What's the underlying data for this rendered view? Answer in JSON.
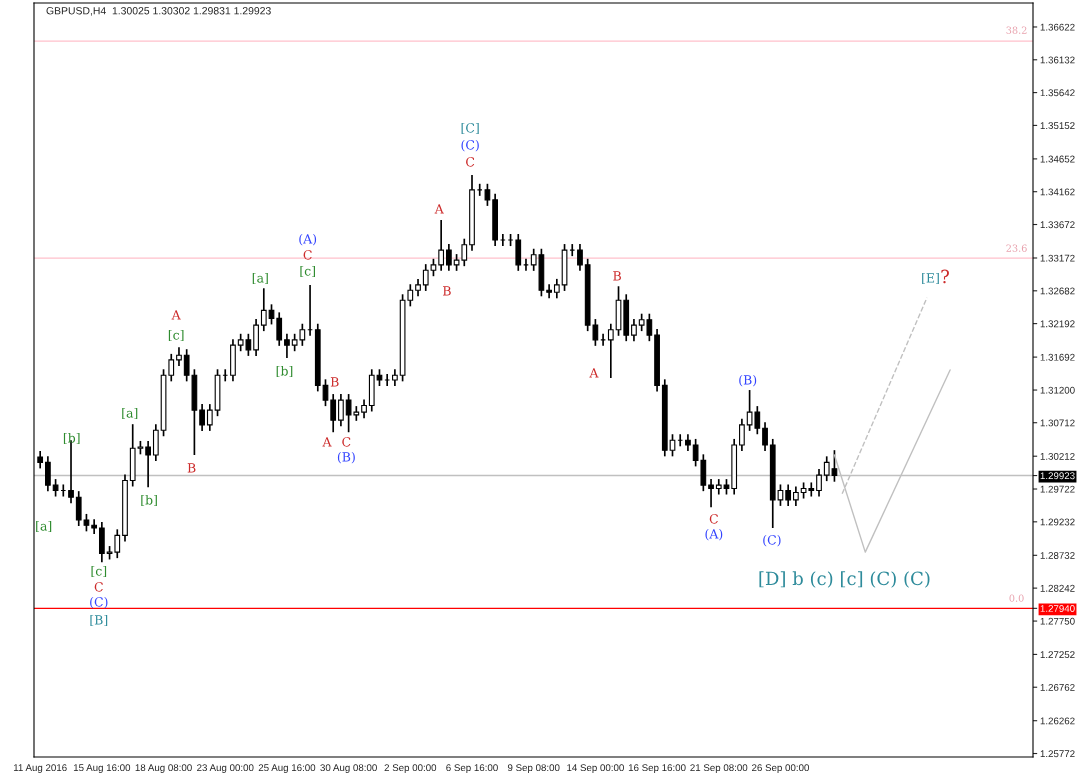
{
  "chart_data": {
    "type": "candlestick",
    "title": "GBPUSD,H4  1.30025 1.30302 1.29831 1.29923",
    "categories": [
      "11 Aug 2016",
      null,
      null,
      null,
      null,
      null,
      null,
      null,
      "15 Aug 16:00",
      null,
      null,
      null,
      null,
      null,
      null,
      null,
      "18 Aug 08:00",
      null,
      null,
      null,
      null,
      null,
      null,
      null,
      "23 Aug 00:00",
      null,
      null,
      null,
      null,
      null,
      null,
      null,
      "25 Aug 16:00",
      null,
      null,
      null,
      null,
      null,
      null,
      null,
      "30 Aug 08:00",
      null,
      null,
      null,
      null,
      null,
      null,
      null,
      "2 Sep 00:00",
      null,
      null,
      null,
      null,
      null,
      null,
      null,
      "6 Sep 16:00",
      null,
      null,
      null,
      null,
      null,
      null,
      null,
      "9 Sep 08:00",
      null,
      null,
      null,
      null,
      null,
      null,
      null,
      "14 Sep 00:00",
      null,
      null,
      null,
      null,
      null,
      null,
      null,
      "16 Sep 16:00",
      null,
      null,
      null,
      null,
      null,
      null,
      null,
      "21 Sep 08:00",
      null,
      null,
      null,
      null,
      null,
      null,
      null,
      "26 Sep 00:00",
      null,
      null,
      null,
      null,
      null,
      null,
      null,
      null,
      null,
      null,
      null,
      null,
      null,
      null,
      null,
      null,
      null,
      null,
      null,
      null,
      null,
      null,
      null,
      null,
      null,
      null,
      null,
      null,
      null,
      null,
      null,
      null
    ],
    "ohlc": [
      [
        1.302,
        1.3029,
        1.3003,
        1.3012
      ],
      [
        1.3012,
        1.3021,
        1.2969,
        1.2978
      ],
      [
        1.2978,
        1.2987,
        1.2961,
        1.297
      ],
      [
        1.297,
        1.2979,
        1.2961,
        1.297
      ],
      [
        1.297,
        1.3045,
        1.2951,
        1.296
      ],
      [
        1.296,
        1.2969,
        1.2917,
        1.2926
      ],
      [
        1.2926,
        1.2935,
        1.2909,
        1.2918
      ],
      [
        1.2918,
        1.2927,
        1.2905,
        1.2914
      ],
      [
        1.2914,
        1.2923,
        1.2863,
        1.2876
      ],
      [
        1.2876,
        1.2887,
        1.2867,
        1.2878
      ],
      [
        1.2878,
        1.2912,
        1.2869,
        1.2903
      ],
      [
        1.2903,
        1.2994,
        1.2894,
        1.2985
      ],
      [
        1.2985,
        1.3069,
        1.2976,
        1.3033
      ],
      [
        1.3033,
        1.3044,
        1.3024,
        1.3035
      ],
      [
        1.3035,
        1.3044,
        1.2975,
        1.3023
      ],
      [
        1.3023,
        1.3069,
        1.3014,
        1.306
      ],
      [
        1.306,
        1.3151,
        1.3051,
        1.3142
      ],
      [
        1.3142,
        1.3174,
        1.3133,
        1.3165
      ],
      [
        1.3165,
        1.3184,
        1.3156,
        1.3172
      ],
      [
        1.3172,
        1.3181,
        1.3133,
        1.3142
      ],
      [
        1.3142,
        1.3151,
        1.3023,
        1.309
      ],
      [
        1.309,
        1.3099,
        1.3059,
        1.3068
      ],
      [
        1.3068,
        1.3099,
        1.3059,
        1.309
      ],
      [
        1.309,
        1.3151,
        1.3081,
        1.3142
      ],
      [
        1.3142,
        1.3151,
        1.3133,
        1.3142
      ],
      [
        1.3142,
        1.3196,
        1.3133,
        1.3187
      ],
      [
        1.3187,
        1.3204,
        1.3178,
        1.3195
      ],
      [
        1.3195,
        1.3204,
        1.3171,
        1.318
      ],
      [
        1.318,
        1.3226,
        1.3171,
        1.3217
      ],
      [
        1.3217,
        1.3272,
        1.3208,
        1.3239
      ],
      [
        1.3239,
        1.3248,
        1.3218,
        1.3227
      ],
      [
        1.3227,
        1.3236,
        1.3186,
        1.3195
      ],
      [
        1.3195,
        1.3204,
        1.3168,
        1.3187
      ],
      [
        1.3187,
        1.3204,
        1.3178,
        1.3195
      ],
      [
        1.3195,
        1.3219,
        1.3186,
        1.321
      ],
      [
        1.321,
        1.3277,
        1.3201,
        1.321
      ],
      [
        1.321,
        1.3219,
        1.3118,
        1.3127
      ],
      [
        1.3127,
        1.3136,
        1.3096,
        1.3105
      ],
      [
        1.3105,
        1.3114,
        1.3057,
        1.3075
      ],
      [
        1.3075,
        1.3114,
        1.3066,
        1.3105
      ],
      [
        1.3105,
        1.3114,
        1.3057,
        1.3083
      ],
      [
        1.3083,
        1.3096,
        1.3074,
        1.3087
      ],
      [
        1.3087,
        1.3106,
        1.3078,
        1.3097
      ],
      [
        1.3097,
        1.3151,
        1.3088,
        1.3142
      ],
      [
        1.3142,
        1.3151,
        1.3126,
        1.3135
      ],
      [
        1.3135,
        1.3144,
        1.3126,
        1.3135
      ],
      [
        1.3135,
        1.3151,
        1.3126,
        1.3142
      ],
      [
        1.3142,
        1.3263,
        1.3133,
        1.3254
      ],
      [
        1.3254,
        1.3278,
        1.3245,
        1.3269
      ],
      [
        1.3269,
        1.3286,
        1.326,
        1.3277
      ],
      [
        1.3277,
        1.3308,
        1.3268,
        1.3299
      ],
      [
        1.3299,
        1.3316,
        1.329,
        1.3307
      ],
      [
        1.3307,
        1.3374,
        1.3298,
        1.3329
      ],
      [
        1.3329,
        1.3338,
        1.3298,
        1.3307
      ],
      [
        1.3307,
        1.3323,
        1.3298,
        1.3314
      ],
      [
        1.3314,
        1.3346,
        1.3305,
        1.3337
      ],
      [
        1.3337,
        1.3441,
        1.3328,
        1.3419
      ],
      [
        1.3419,
        1.3428,
        1.341,
        1.3419
      ],
      [
        1.3419,
        1.3428,
        1.3395,
        1.3404
      ],
      [
        1.3404,
        1.3413,
        1.3335,
        1.3344
      ],
      [
        1.3344,
        1.3353,
        1.3335,
        1.3344
      ],
      [
        1.3344,
        1.3353,
        1.3335,
        1.3344
      ],
      [
        1.3344,
        1.3353,
        1.3298,
        1.3307
      ],
      [
        1.3307,
        1.3316,
        1.3298,
        1.3307
      ],
      [
        1.3307,
        1.3331,
        1.3298,
        1.3322
      ],
      [
        1.3322,
        1.3331,
        1.326,
        1.3269
      ],
      [
        1.3269,
        1.3278,
        1.3257,
        1.3266
      ],
      [
        1.3266,
        1.3286,
        1.3257,
        1.3277
      ],
      [
        1.3277,
        1.3338,
        1.3268,
        1.3329
      ],
      [
        1.3329,
        1.3338,
        1.332,
        1.3329
      ],
      [
        1.3329,
        1.3338,
        1.3298,
        1.3307
      ],
      [
        1.3307,
        1.3316,
        1.3208,
        1.3217
      ],
      [
        1.3217,
        1.3226,
        1.3186,
        1.3195
      ],
      [
        1.3195,
        1.3204,
        1.3186,
        1.3195
      ],
      [
        1.3195,
        1.3219,
        1.3138,
        1.321
      ],
      [
        1.321,
        1.3275,
        1.3201,
        1.3254
      ],
      [
        1.3254,
        1.3263,
        1.3193,
        1.3202
      ],
      [
        1.3202,
        1.3226,
        1.3193,
        1.3217
      ],
      [
        1.3217,
        1.3234,
        1.3208,
        1.3225
      ],
      [
        1.3225,
        1.3234,
        1.3193,
        1.3202
      ],
      [
        1.3202,
        1.3211,
        1.3118,
        1.3127
      ],
      [
        1.3127,
        1.3136,
        1.3021,
        1.303
      ],
      [
        1.303,
        1.3054,
        1.3021,
        1.3045
      ],
      [
        1.3045,
        1.3054,
        1.3036,
        1.3045
      ],
      [
        1.3045,
        1.3054,
        1.3029,
        1.3038
      ],
      [
        1.3038,
        1.3047,
        1.3006,
        1.3015
      ],
      [
        1.3015,
        1.3024,
        1.2969,
        1.2978
      ],
      [
        1.2978,
        1.2987,
        1.2945,
        1.2973
      ],
      [
        1.2973,
        1.2987,
        1.2964,
        1.2978
      ],
      [
        1.2978,
        1.2987,
        1.2964,
        1.2973
      ],
      [
        1.2973,
        1.3047,
        1.2964,
        1.3038
      ],
      [
        1.3038,
        1.3077,
        1.3029,
        1.3068
      ],
      [
        1.3068,
        1.312,
        1.3059,
        1.3087
      ],
      [
        1.3087,
        1.3096,
        1.3054,
        1.3063
      ],
      [
        1.3063,
        1.3072,
        1.3029,
        1.3038
      ],
      [
        1.3038,
        1.3047,
        1.2914,
        1.2956
      ],
      [
        1.2956,
        1.2979,
        1.2947,
        1.297
      ],
      [
        1.297,
        1.2979,
        1.2947,
        1.2956
      ],
      [
        1.2956,
        1.2976,
        1.2947,
        1.2967
      ],
      [
        1.2967,
        1.2982,
        1.2958,
        1.2973
      ],
      [
        1.2973,
        1.2982,
        1.2961,
        1.297
      ],
      [
        1.297,
        1.3002,
        1.2961,
        1.2993
      ],
      [
        1.2993,
        1.3021,
        1.2984,
        1.3012
      ],
      [
        1.30025,
        1.30302,
        1.29831,
        1.29923
      ],
      null,
      null,
      null,
      null,
      null,
      null,
      null,
      null,
      null,
      null,
      null,
      null,
      null,
      null,
      null,
      null,
      null,
      null,
      null,
      null,
      null,
      null,
      null,
      null,
      null
    ],
    "series": [
      {
        "type": "line",
        "color": "#c0c0c0",
        "line_style": "solid",
        "values": [
          null,
          null,
          null,
          null,
          null,
          null,
          null,
          null,
          null,
          null,
          null,
          null,
          null,
          null,
          null,
          null,
          null,
          null,
          null,
          null,
          null,
          null,
          null,
          null,
          null,
          null,
          null,
          null,
          null,
          null,
          null,
          null,
          null,
          null,
          null,
          null,
          null,
          null,
          null,
          null,
          null,
          null,
          null,
          null,
          null,
          null,
          null,
          null,
          null,
          null,
          null,
          null,
          null,
          null,
          null,
          null,
          null,
          null,
          null,
          null,
          null,
          null,
          null,
          null,
          null,
          null,
          null,
          null,
          null,
          null,
          null,
          null,
          null,
          null,
          null,
          null,
          null,
          null,
          null,
          null,
          null,
          null,
          null,
          null,
          null,
          null,
          null,
          null,
          null,
          null,
          null,
          null,
          null,
          null,
          null,
          null,
          null,
          null,
          null,
          null,
          null,
          null,
          null,
          1.3023,
          null,
          null,
          null,
          1.2878,
          null,
          null,
          null,
          null,
          null,
          null,
          null,
          null,
          null,
          null,
          1.315,
          null,
          null,
          null,
          null,
          null,
          null,
          null,
          null,
          null,
          null
        ]
      },
      {
        "type": "line",
        "color": "#c0c0c0",
        "line_style": "dashed",
        "values": [
          null,
          null,
          null,
          null,
          null,
          null,
          null,
          null,
          null,
          null,
          null,
          null,
          null,
          null,
          null,
          null,
          null,
          null,
          null,
          null,
          null,
          null,
          null,
          null,
          null,
          null,
          null,
          null,
          null,
          null,
          null,
          null,
          null,
          null,
          null,
          null,
          null,
          null,
          null,
          null,
          null,
          null,
          null,
          null,
          null,
          null,
          null,
          null,
          null,
          null,
          null,
          null,
          null,
          null,
          null,
          null,
          null,
          null,
          null,
          null,
          null,
          null,
          null,
          null,
          null,
          null,
          null,
          null,
          null,
          null,
          null,
          null,
          null,
          null,
          null,
          null,
          null,
          null,
          null,
          null,
          null,
          null,
          null,
          null,
          null,
          null,
          null,
          null,
          null,
          null,
          null,
          null,
          null,
          null,
          null,
          null,
          null,
          null,
          null,
          null,
          null,
          null,
          null,
          null,
          1.2965,
          null,
          null,
          null,
          null,
          null,
          null,
          null,
          null,
          null,
          null,
          1.3258,
          null,
          null,
          null,
          null,
          null,
          null,
          null,
          null,
          null,
          null,
          null,
          null,
          null
        ]
      }
    ],
    "ylim": [
      1.2572,
      1.3698
    ],
    "yticks": [
      1.25772,
      1.26262,
      1.26762,
      1.27252,
      {
        "value": 1.2775,
        "label": "1.27750"
      },
      {
        "value": 1.2794,
        "label": "1.27940"
      },
      1.28242,
      1.28732,
      1.29232,
      1.29722,
      1.29923,
      1.30212,
      1.30712,
      {
        "value": 1.312,
        "label": "1.31200"
      },
      1.31692,
      1.32192,
      1.32682,
      1.33172,
      1.33672,
      1.34162,
      1.34652,
      1.35152,
      1.35642,
      1.36132,
      1.36622
    ],
    "ref_lines": [
      {
        "axis": "y",
        "value": 1.3641,
        "color": "#ffc0cb"
      },
      {
        "axis": "y",
        "value": 1.3317,
        "color": "#ffc0cb"
      },
      {
        "axis": "y",
        "value": 1.2794,
        "color": "#ff0000"
      },
      {
        "axis": "y",
        "value": 1.29923,
        "color": "#c0c0c0"
      }
    ],
    "annotations": [
      "[a]",
      "[b]",
      "[c]",
      "C",
      "(C)",
      "[B]",
      "[a]",
      "[b]",
      "A",
      "[c]",
      "B",
      "[a]",
      "[b]",
      "(A)",
      "C",
      "[c]",
      "A",
      "B",
      "C",
      "(B)",
      "A",
      "B",
      "[C]",
      "(C)",
      "C",
      "A",
      "B",
      "C",
      "(A)",
      "(B)",
      "(C)",
      "[E]",
      "?",
      "[D] b (c) [c] (C) (C)",
      "38.2",
      "23.6",
      "0.0"
    ]
  }
}
